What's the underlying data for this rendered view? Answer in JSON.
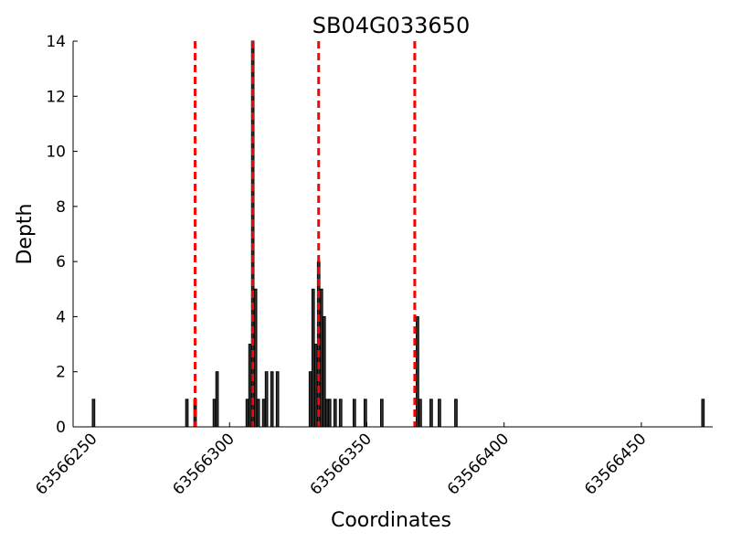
{
  "chart_data": {
    "type": "bar",
    "title": "SB04G033650",
    "xlabel": "Coordinates",
    "ylabel": "Depth",
    "xlim": [
      63566243,
      63566476
    ],
    "ylim": [
      0,
      14
    ],
    "xticks": [
      63566250,
      63566300,
      63566350,
      63566400,
      63566450
    ],
    "yticks": [
      0,
      2,
      4,
      6,
      8,
      10,
      12,
      14
    ],
    "grid": false,
    "bar_color": "#333333",
    "marker_line_color": "#ff0000",
    "series": [
      {
        "x": [
          63566250,
          63566284,
          63566287,
          63566294,
          63566295,
          63566306,
          63566307,
          63566308,
          63566309,
          63566310,
          63566312,
          63566313,
          63566315,
          63566317,
          63566329,
          63566330,
          63566331,
          63566332,
          63566333,
          63566334,
          63566335,
          63566336,
          63566338,
          63566340,
          63566345,
          63566349,
          63566355,
          63566368,
          63566369,
          63566373,
          63566376,
          63566382,
          63566472
        ],
        "values": [
          1,
          1,
          1,
          1,
          2,
          1,
          3,
          14,
          5,
          1,
          1,
          2,
          2,
          2,
          2,
          5,
          3,
          6,
          5,
          4,
          1,
          1,
          1,
          1,
          1,
          1,
          1,
          4,
          1,
          1,
          1,
          1,
          1
        ]
      }
    ],
    "markers": [
      63566287,
      63566308,
      63566332,
      63566367
    ]
  }
}
